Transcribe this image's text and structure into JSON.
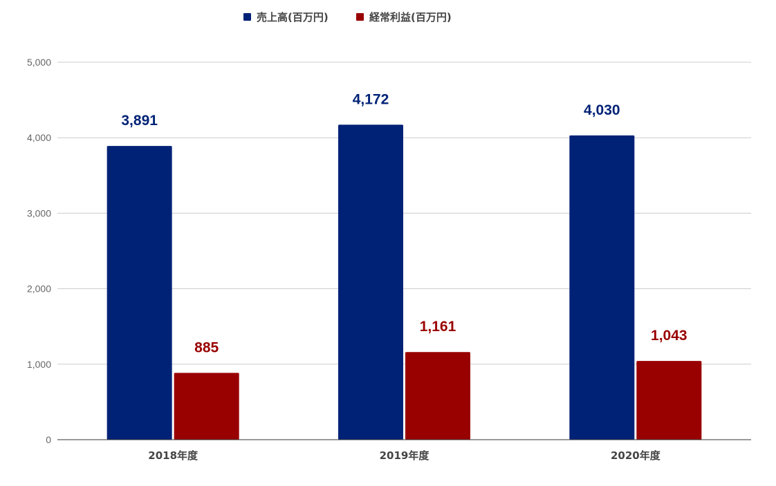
{
  "chart_data": {
    "type": "bar",
    "categories": [
      "2018年度",
      "2019年度",
      "2020年度"
    ],
    "series": [
      {
        "name": "売上高(百万円)",
        "color": "#002276",
        "values": [
          3891,
          4172,
          4030
        ],
        "labels": [
          "3,891",
          "4,172",
          "4,030"
        ]
      },
      {
        "name": "経常利益(百万円)",
        "color": "#990000",
        "values": [
          885,
          1161,
          1043
        ],
        "labels": [
          "885",
          "1,161",
          "1,043"
        ]
      }
    ],
    "ylim": [
      0,
      5000
    ],
    "yticks": [
      0,
      1000,
      2000,
      3000,
      4000,
      5000
    ],
    "ytick_labels": [
      "0",
      "1,000",
      "2,000",
      "3,000",
      "4,000",
      "5,000"
    ],
    "grid": true,
    "legend": "top-center",
    "title": "",
    "xlabel": "",
    "ylabel": ""
  }
}
